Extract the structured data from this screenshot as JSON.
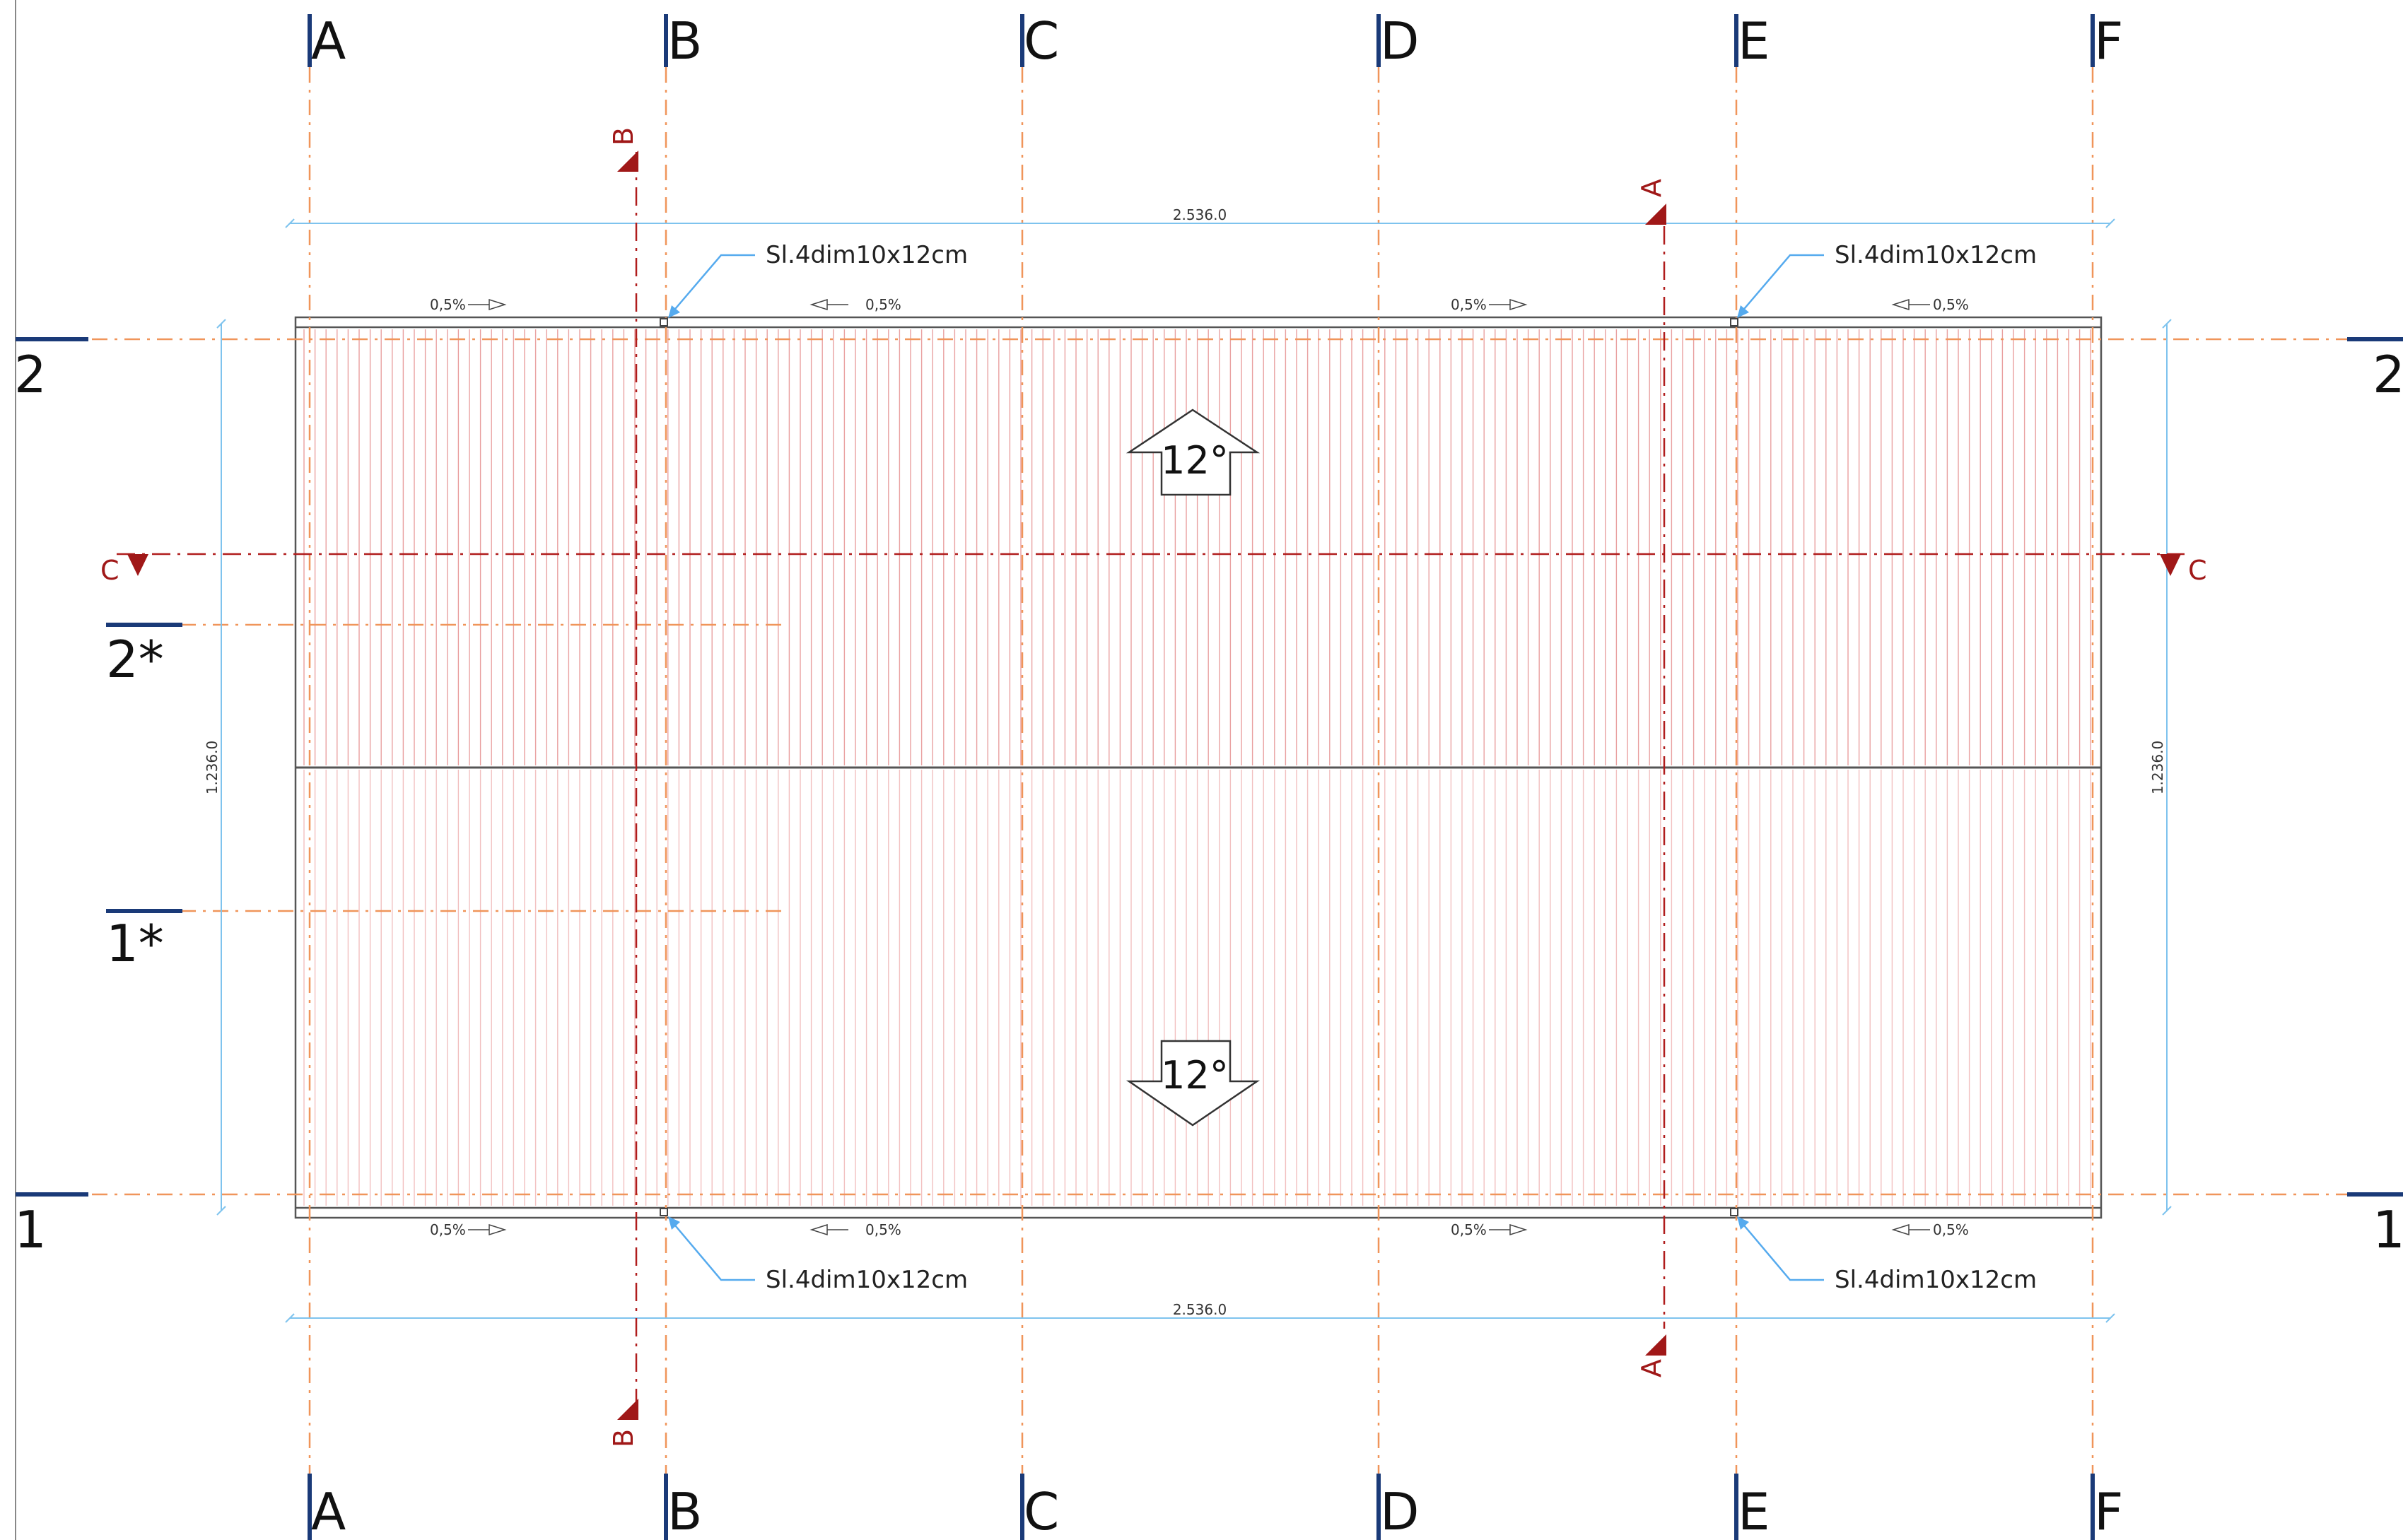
{
  "grid": {
    "columns": [
      "A",
      "B",
      "C",
      "D",
      "E",
      "F"
    ],
    "rows": [
      "2",
      "1"
    ],
    "sub_rows": [
      "2*",
      "1*"
    ],
    "right_rows": [
      "2",
      "1"
    ]
  },
  "dimensions": {
    "top_length": "2.536.0",
    "bottom_length": "2.536.0",
    "left_height": "1.236.0",
    "right_height": "1.236.0"
  },
  "sections": {
    "a_top": "A",
    "a_bottom": "A",
    "b_top": "B",
    "b_bottom": "B",
    "c_left": "C",
    "c_right": "C"
  },
  "slopes": {
    "upper": "12°",
    "lower": "12°"
  },
  "gutter_labels": {
    "top_1": "0,5%",
    "top_2": "0,5%",
    "top_3": "0,5%",
    "top_4": "0,5%",
    "bottom_1": "0,5%",
    "bottom_2": "0,5%",
    "bottom_3": "0,5%",
    "bottom_4": "0,5%"
  },
  "downpipes": {
    "top_left": "Sl.4dim10x12cm",
    "top_right": "Sl.4dim10x12cm",
    "bottom_left": "Sl.4dim10x12cm",
    "bottom_right": "Sl.4dim10x12cm"
  },
  "colors": {
    "grid_bar": "#1a3a78",
    "grid_dash": "#f0955a",
    "section_line": "#a01818",
    "dimension": "#7ec3ee"
  }
}
